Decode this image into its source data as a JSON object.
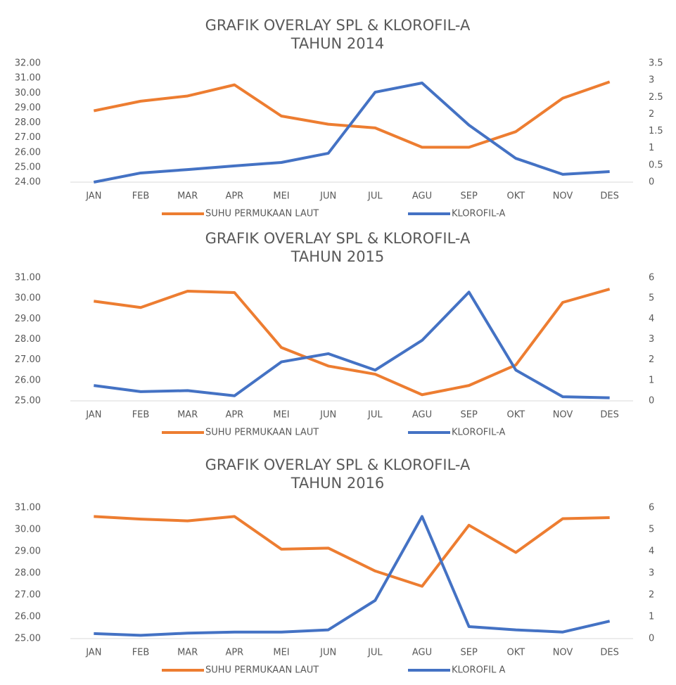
{
  "chart_data": [
    {
      "type": "line",
      "title": "GRAFIK OVERLAY SPL & KLOROFIL-A",
      "subtitle": "TAHUN 2014",
      "categories": [
        "JAN",
        "FEB",
        "MAR",
        "APR",
        "MEI",
        "JUN",
        "JUL",
        "AGU",
        "SEP",
        "OKT",
        "NOV",
        "DES"
      ],
      "series": [
        {
          "name": "SUHU PERMUKAAN LAUT",
          "color": "#ed7d31",
          "values": [
            28.8,
            29.45,
            29.8,
            30.55,
            28.45,
            27.9,
            27.65,
            26.35,
            26.35,
            27.4,
            29.65,
            30.75
          ]
        },
        {
          "name": "KLOROFIL-A",
          "color": "#4472c4",
          "axis": "y2",
          "values": [
            0,
            0.27,
            0.37,
            0.48,
            0.58,
            0.85,
            2.65,
            2.92,
            1.68,
            0.7,
            0.23,
            0.31
          ]
        }
      ],
      "ylim": [
        24,
        32
      ],
      "yticks": [
        {
          "value": 24,
          "label": "24.00"
        },
        {
          "value": 25,
          "label": "25.00"
        },
        {
          "value": 26,
          "label": "26.00"
        },
        {
          "value": 27,
          "label": "27.00"
        },
        {
          "value": 28,
          "label": "28.00"
        },
        {
          "value": 29,
          "label": "29.00"
        },
        {
          "value": 30,
          "label": "30.00"
        },
        {
          "value": 31,
          "label": "31.00"
        },
        {
          "value": 32,
          "label": "32.00"
        }
      ],
      "y2lim": [
        0,
        3.5
      ],
      "y2ticks": [
        0,
        0.5,
        1,
        1.5,
        2,
        2.5,
        3,
        3.5
      ],
      "grid": false,
      "legend": "bottom"
    },
    {
      "type": "line",
      "title": "GRAFIK OVERLAY SPL & KLOROFIL-A",
      "subtitle": "TAHUN 2015",
      "categories": [
        "JAN",
        "FEB",
        "MAR",
        "APR",
        "MEI",
        "JUN",
        "JUL",
        "AGU",
        "SEP",
        "OKT",
        "NOV",
        "DES"
      ],
      "series": [
        {
          "name": "SUHU PERMUKAAN LAUT",
          "color": "#ed7d31",
          "values": [
            29.86,
            29.55,
            30.35,
            30.28,
            27.6,
            26.7,
            26.3,
            25.3,
            25.75,
            26.75,
            29.8,
            30.45
          ]
        },
        {
          "name": "KLOROFIL-A",
          "color": "#4472c4",
          "axis": "y2",
          "values": [
            0.75,
            0.45,
            0.5,
            0.25,
            1.9,
            2.3,
            1.5,
            2.95,
            5.3,
            1.5,
            0.2,
            0.15
          ]
        }
      ],
      "ylim": [
        25,
        31
      ],
      "yticks": [
        {
          "value": 25,
          "label": "25.00"
        },
        {
          "value": 26,
          "label": "26.00"
        },
        {
          "value": 27,
          "label": "27.00"
        },
        {
          "value": 28,
          "label": "28.00"
        },
        {
          "value": 29,
          "label": "29.00"
        },
        {
          "value": 30,
          "label": "30.00"
        },
        {
          "value": 31,
          "label": "31.00"
        }
      ],
      "y2lim": [
        0,
        6
      ],
      "y2ticks": [
        0,
        1,
        2,
        3,
        4,
        5,
        6
      ],
      "grid": false,
      "legend": "bottom"
    },
    {
      "type": "line",
      "title": "GRAFIK OVERLAY SPL & KLOROFIL-A",
      "subtitle": "TAHUN 2016",
      "categories": [
        "JAN",
        "FEB",
        "MAR",
        "APR",
        "MEI",
        "JUN",
        "JUL",
        "AGU",
        "SEP",
        "OKT",
        "NOV",
        "DES"
      ],
      "series": [
        {
          "name": "SUHU PERMUKAAN LAUT",
          "color": "#ed7d31",
          "values": [
            30.6,
            30.48,
            30.4,
            30.6,
            29.1,
            29.15,
            28.1,
            27.4,
            30.2,
            28.95,
            30.5,
            30.55
          ]
        },
        {
          "name": "KLOROFIL A",
          "color": "#4472c4",
          "axis": "y2",
          "values": [
            0.23,
            0.15,
            0.25,
            0.3,
            0.3,
            0.4,
            1.75,
            5.6,
            0.55,
            0.4,
            0.3,
            0.8
          ]
        }
      ],
      "ylim": [
        25,
        31
      ],
      "yticks": [
        {
          "value": 25,
          "label": "25.00"
        },
        {
          "value": 26,
          "label": "26.00"
        },
        {
          "value": 27,
          "label": "27.00"
        },
        {
          "value": 28,
          "label": "28.00"
        },
        {
          "value": 29,
          "label": "29.00"
        },
        {
          "value": 30,
          "label": "30.00"
        },
        {
          "value": 31,
          "label": "31.00"
        }
      ],
      "y2lim": [
        0,
        6
      ],
      "y2ticks": [
        0,
        1,
        2,
        3,
        4,
        5,
        6
      ],
      "grid": false,
      "legend": "bottom"
    }
  ]
}
